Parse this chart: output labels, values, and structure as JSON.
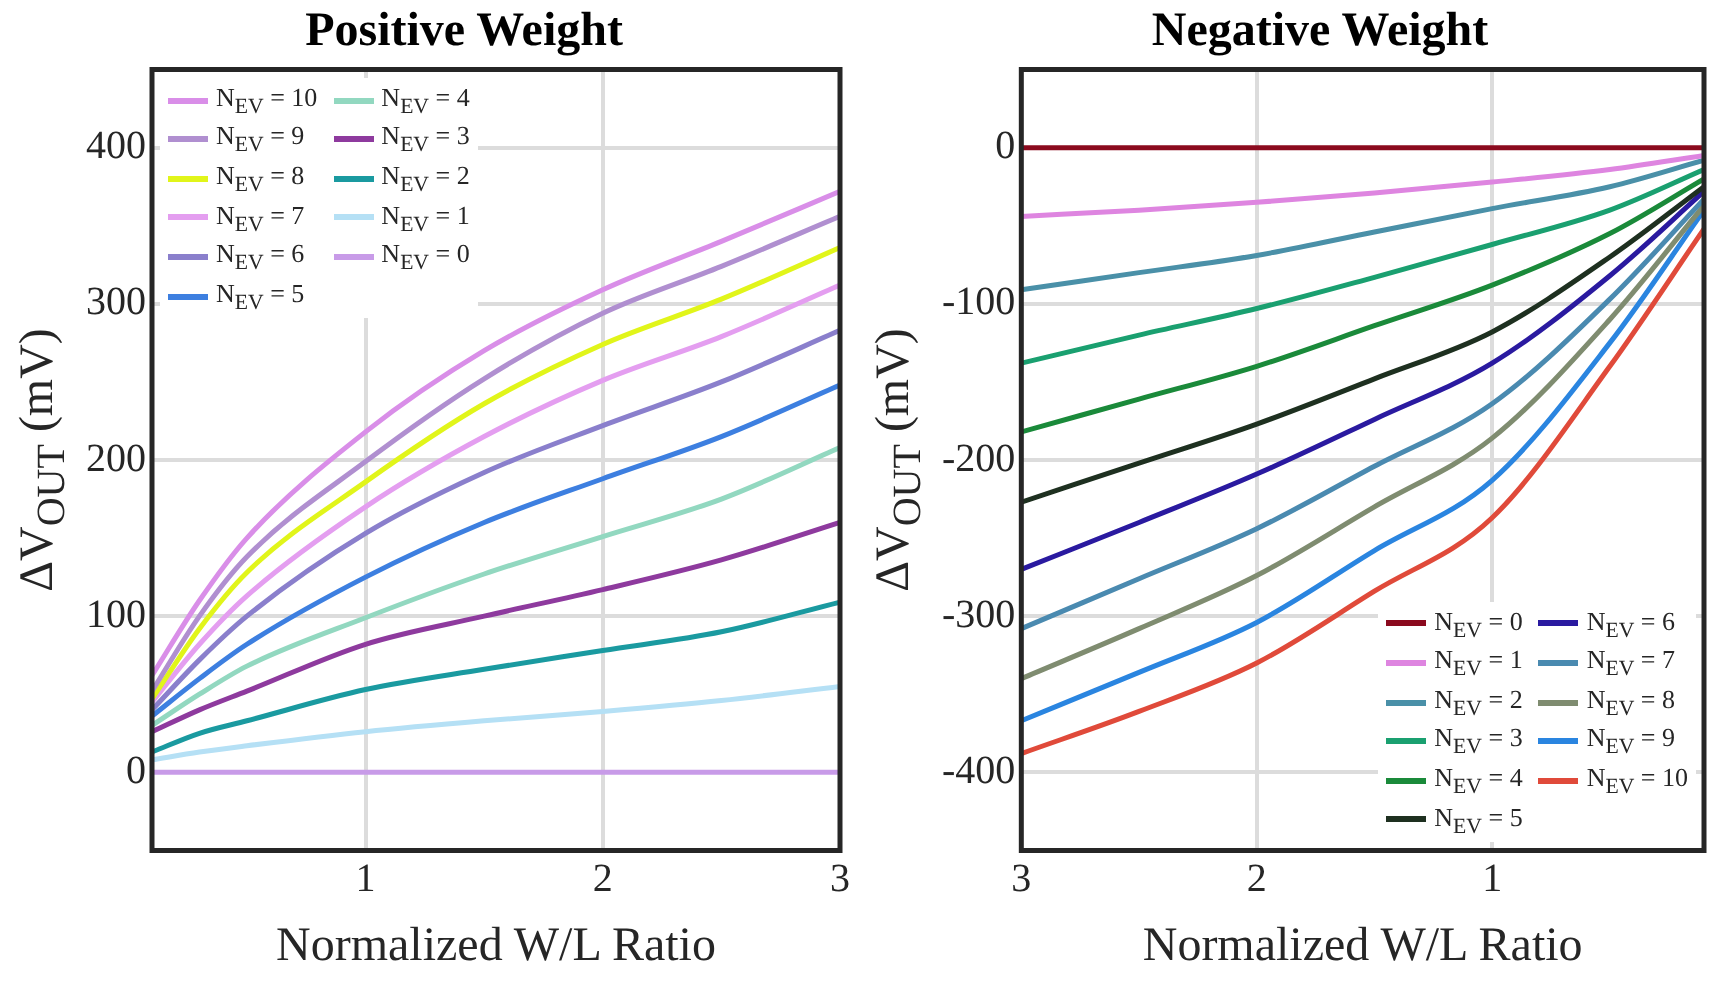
{
  "chart_data": [
    {
      "type": "line",
      "title": "Positive Weight",
      "xlabel": "Normalized W/L Ratio",
      "ylabel": "ΔV$_{OUT}$ (mV)",
      "x": [
        0.1,
        0.3,
        0.5,
        1,
        1.5,
        2,
        2.5,
        3
      ],
      "xlim": [
        0.1,
        3
      ],
      "ylim": [
        -50,
        450
      ],
      "xticks": [
        1,
        2,
        3
      ],
      "yticks": [
        0,
        100,
        200,
        300,
        400
      ],
      "grid": true,
      "legend": "top left",
      "marker": "none",
      "series": [
        {
          "name": "N$_{EV}$ = 10",
          "color": "#d98ee8",
          "values": [
            62,
            110,
            150,
            218,
            270,
            309,
            340,
            372
          ]
        },
        {
          "name": "N$_{EV}$ = 9",
          "color": "#b08fd0",
          "values": [
            52,
            100,
            138,
            199,
            252,
            294,
            324,
            356
          ]
        },
        {
          "name": "N$_{EV}$ = 8",
          "color": "#e1f51a",
          "values": [
            47,
            92,
            128,
            186,
            236,
            274,
            303,
            336
          ]
        },
        {
          "name": "N$_{EV}$ = 7",
          "color": "#e49ef0",
          "values": [
            45,
            82,
            113,
            170,
            215,
            251,
            279,
            312
          ]
        },
        {
          "name": "N$_{EV}$ = 6",
          "color": "#8a7fcc",
          "values": [
            40,
            72,
            100,
            153,
            192,
            222,
            250,
            283
          ]
        },
        {
          "name": "N$_{EV}$ = 5",
          "color": "#3d7fe0",
          "values": [
            36,
            60,
            82,
            125,
            160,
            188,
            215,
            248
          ]
        },
        {
          "name": "N$_{EV}$ = 4",
          "color": "#92d8c0",
          "values": [
            30,
            50,
            68,
            99,
            127,
            151,
            175,
            208
          ]
        },
        {
          "name": "N$_{EV}$ = 3",
          "color": "#8e3a9e",
          "values": [
            26,
            40,
            52,
            82,
            100,
            117,
            136,
            160
          ]
        },
        {
          "name": "N$_{EV}$ = 2",
          "color": "#1a9aa0",
          "values": [
            13,
            25,
            33,
            53,
            66,
            78,
            90,
            109
          ]
        },
        {
          "name": "N$_{EV}$ = 1",
          "color": "#b5e0f5",
          "values": [
            8,
            13,
            17,
            26,
            33,
            39,
            46,
            55
          ]
        },
        {
          "name": "N$_{EV}$ = 0",
          "color": "#c89be8",
          "values": [
            0,
            0,
            0,
            0,
            0,
            0,
            0,
            0
          ]
        }
      ]
    },
    {
      "type": "line",
      "title": "Negative Weight",
      "xlabel": "Normalized W/L Ratio",
      "ylabel": "ΔV$_{OUT}$ (mV)",
      "x": [
        3,
        2.5,
        2,
        1.5,
        1,
        0.5,
        0.1
      ],
      "xlim": [
        3,
        0.1
      ],
      "ylim": [
        -450,
        50
      ],
      "xticks": [
        3,
        2,
        1
      ],
      "yticks": [
        -400,
        -300,
        -200,
        -100,
        0
      ],
      "grid": true,
      "legend": "bottom right",
      "marker": "none",
      "series": [
        {
          "name": "N$_{EV}$ = 0",
          "color": "#8b0a1e",
          "values": [
            0,
            0,
            0,
            0,
            0,
            0,
            0
          ]
        },
        {
          "name": "N$_{EV}$ = 1",
          "color": "#de85e0",
          "values": [
            -44,
            -40,
            -35,
            -29,
            -22,
            -14,
            -5
          ]
        },
        {
          "name": "N$_{EV}$ = 2",
          "color": "#4a90a8",
          "values": [
            -91,
            -80,
            -69,
            -54,
            -39,
            -25,
            -8
          ]
        },
        {
          "name": "N$_{EV}$ = 3",
          "color": "#1aa070",
          "values": [
            -138,
            -120,
            -103,
            -83,
            -62,
            -40,
            -14
          ]
        },
        {
          "name": "N$_{EV}$ = 4",
          "color": "#1a8a3a",
          "values": [
            -182,
            -161,
            -140,
            -114,
            -88,
            -55,
            -20
          ]
        },
        {
          "name": "N$_{EV}$ = 5",
          "color": "#1e3020",
          "values": [
            -227,
            -202,
            -177,
            -148,
            -118,
            -70,
            -25
          ]
        },
        {
          "name": "N$_{EV}$ = 6",
          "color": "#2a1aa0",
          "values": [
            -270,
            -240,
            -209,
            -174,
            -138,
            -82,
            -28
          ]
        },
        {
          "name": "N$_{EV}$ = 7",
          "color": "#4a8ab0",
          "values": [
            -308,
            -276,
            -244,
            -204,
            -164,
            -97,
            -33
          ]
        },
        {
          "name": "N$_{EV}$ = 8",
          "color": "#7f8c70",
          "values": [
            -340,
            -308,
            -274,
            -230,
            -186,
            -110,
            -37
          ]
        },
        {
          "name": "N$_{EV}$ = 9",
          "color": "#2a85e0",
          "values": [
            -367,
            -336,
            -304,
            -258,
            -213,
            -125,
            -40
          ]
        },
        {
          "name": "N$_{EV}$ = 10",
          "color": "#e04a3a",
          "values": [
            -388,
            -361,
            -330,
            -284,
            -237,
            -140,
            -52
          ]
        }
      ]
    }
  ]
}
